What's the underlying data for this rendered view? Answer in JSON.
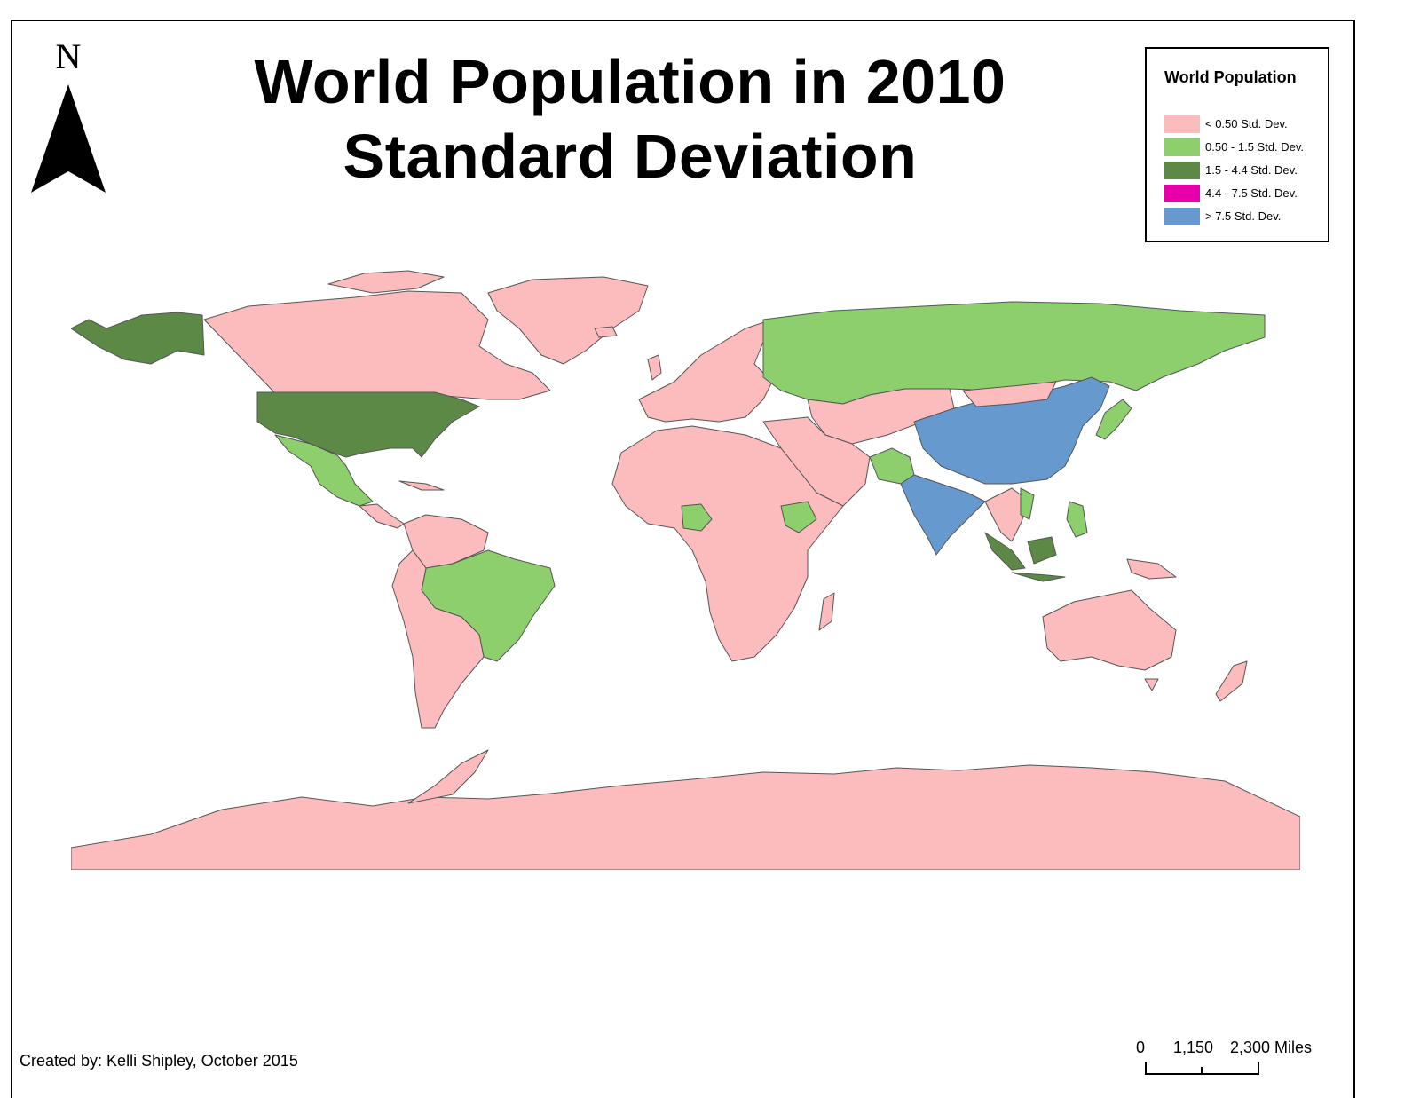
{
  "title_line1": "World Population in 2010",
  "title_line2": "Standard Deviation",
  "north_label": "N",
  "legend": {
    "title": "World Population",
    "items": [
      {
        "label": "< 0.50 Std. Dev.",
        "color": "#fcbcbe"
      },
      {
        "label": "0.50 - 1.5 Std. Dev.",
        "color": "#8ccf6c"
      },
      {
        "label": "1.5 - 4.4 Std. Dev.",
        "color": "#5c8a46"
      },
      {
        "label": "4.4 - 7.5 Std. Dev.",
        "color": "#e600a9"
      },
      {
        "label": "> 7.5 Std. Dev.",
        "color": "#6699cd"
      }
    ]
  },
  "credit": "Created by: Kelli Shipley, October 2015",
  "scale_bar": {
    "labels": [
      "0",
      "1,150",
      "2,300 Miles"
    ]
  },
  "colors": {
    "low": "#fcbcbe",
    "mid": "#8ccf6c",
    "high": "#5c8a46",
    "very_high": "#e600a9",
    "extreme": "#6699cd",
    "border": "#555555"
  }
}
